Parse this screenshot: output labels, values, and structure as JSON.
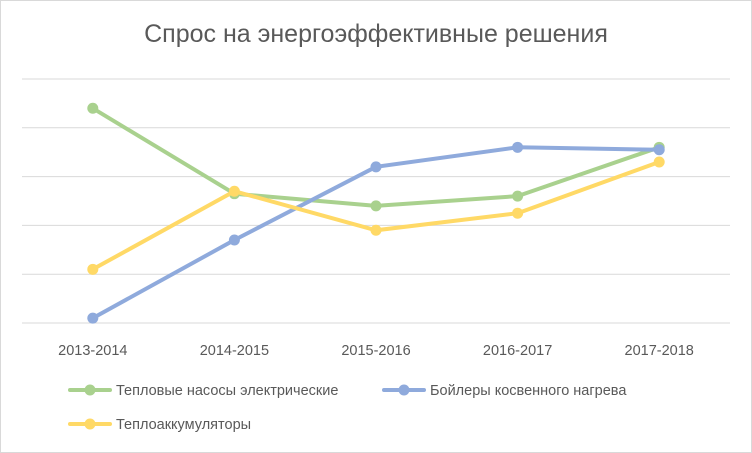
{
  "chart_data": {
    "type": "line",
    "title": "Спрос на энергоэффективные решения",
    "categories": [
      "2013-2014",
      "2014-2015",
      "2015-2016",
      "2016-2017",
      "2017-2018"
    ],
    "ylim": [
      0,
      5
    ],
    "grid": true,
    "y_tick_labels_shown": false,
    "legend_position": "bottom",
    "series": [
      {
        "name": "Тепловые насосы электрические",
        "color": "#a9d18e",
        "values": [
          4.4,
          2.65,
          2.4,
          2.6,
          3.6
        ]
      },
      {
        "name": "Бойлеры косвенного нагрева",
        "color": "#8faadc",
        "values": [
          0.1,
          1.7,
          3.2,
          3.6,
          3.55
        ]
      },
      {
        "name": "Теплоаккумуляторы",
        "color": "#ffd966",
        "values": [
          1.1,
          2.7,
          1.9,
          2.25,
          3.3
        ]
      }
    ]
  }
}
